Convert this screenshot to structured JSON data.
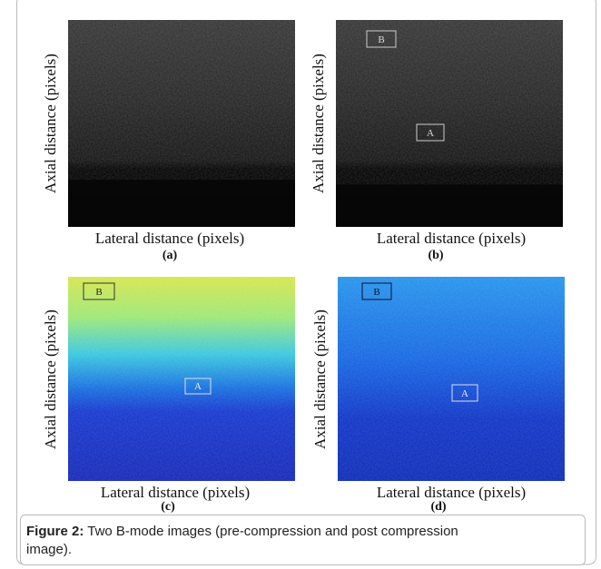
{
  "panels": [
    {
      "y_label": "Axial distance (pixels)",
      "x_label": "Lateral distance (pixels)",
      "tag": "(a)",
      "boxes": []
    },
    {
      "y_label": "Axial distance (pixels)",
      "x_label": "Lateral distance (pixels)",
      "tag": "(b)",
      "boxes": [
        "B",
        "A"
      ]
    },
    {
      "y_label": "Axial distance (pixels)",
      "x_label": "Lateral distance (pixels)",
      "tag": "(c)",
      "boxes": [
        "B",
        "A"
      ]
    },
    {
      "y_label": "Axial distance (pixels)",
      "x_label": "Lateral distance (pixels)",
      "tag": "(d)",
      "boxes": [
        "B",
        "A"
      ]
    }
  ],
  "caption": {
    "label": "Figure 2:",
    "text": "Two B-mode images (pre-compression and post compression",
    "text_cont": "image)."
  }
}
